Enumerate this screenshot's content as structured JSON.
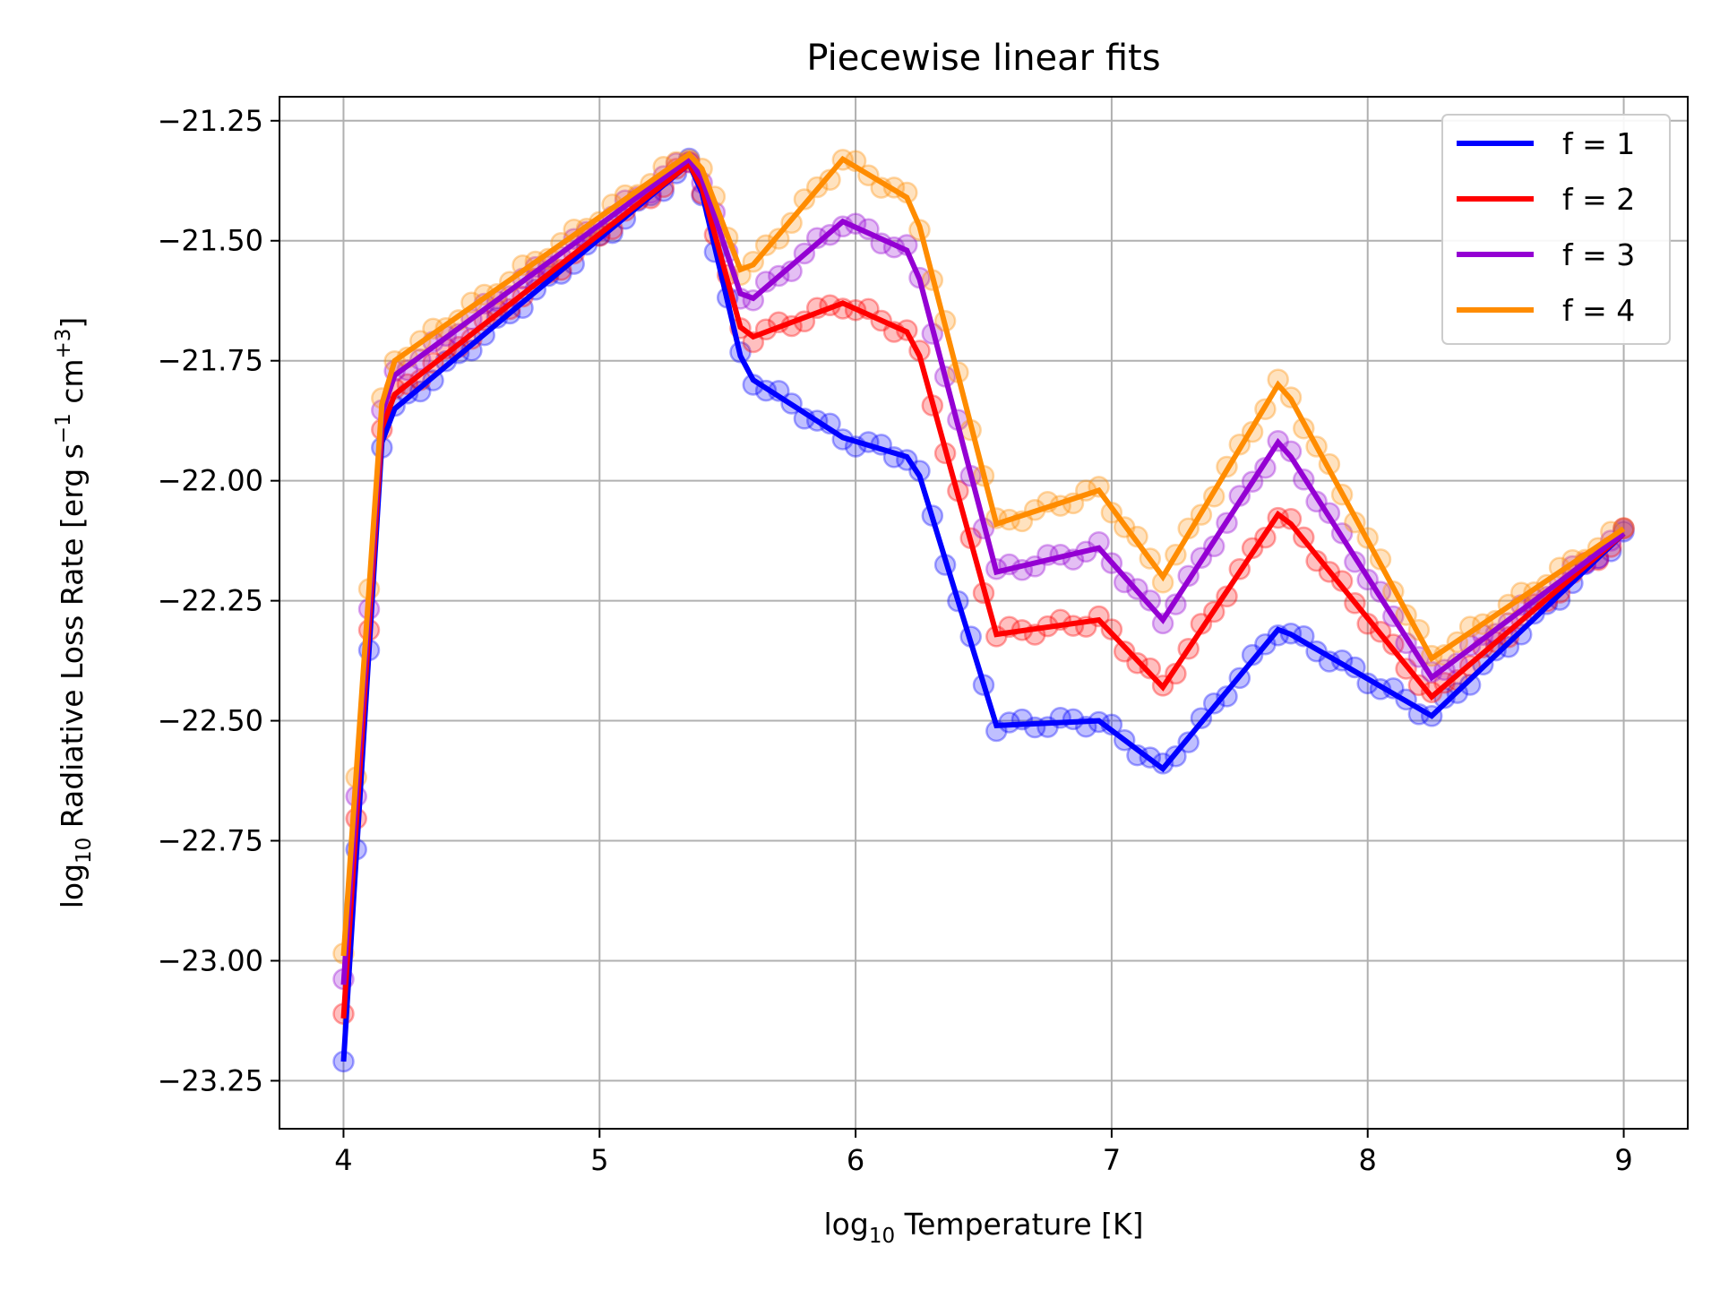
{
  "chart_data": {
    "type": "line",
    "title": "Piecewise linear fits",
    "xlabel": {
      "prefix": "log",
      "sub": "10",
      "rest": " Temperature [K]"
    },
    "ylabel": {
      "prefix": "log",
      "sub": "10",
      "mid": " Radiative Loss Rate [erg s",
      "sup1": "−1",
      "mid2": " cm",
      "sup2": "+3",
      "end": "]"
    },
    "xlim": [
      3.75,
      9.25
    ],
    "ylim": [
      -23.35,
      -21.2
    ],
    "grid": true,
    "legend_position": "top-right",
    "x_ticks": [
      4,
      5,
      6,
      7,
      8,
      9
    ],
    "x_tick_labels": [
      "4",
      "5",
      "6",
      "7",
      "8",
      "9"
    ],
    "y_ticks": [
      -21.25,
      -21.5,
      -21.75,
      -22.0,
      -22.25,
      -22.5,
      -22.75,
      -23.0,
      -23.25
    ],
    "y_tick_labels": [
      "−21.25",
      "−21.50",
      "−21.75",
      "−22.00",
      "−22.25",
      "−22.50",
      "−22.75",
      "−23.00",
      "−23.25"
    ],
    "series": [
      {
        "name": "f = 1",
        "color": "#0000ff",
        "x": [
          4.0,
          4.15,
          4.2,
          5.35,
          5.4,
          5.55,
          5.6,
          5.95,
          6.2,
          6.25,
          6.55,
          6.95,
          7.2,
          7.65,
          7.7,
          8.25,
          9.0
        ],
        "y": [
          -23.21,
          -21.92,
          -21.85,
          -21.34,
          -21.4,
          -21.74,
          -21.79,
          -21.91,
          -21.95,
          -21.99,
          -22.51,
          -22.5,
          -22.6,
          -22.31,
          -22.32,
          -22.49,
          -22.11
        ]
      },
      {
        "name": "f = 2",
        "color": "#ff0000",
        "x": [
          4.0,
          4.15,
          4.2,
          5.35,
          5.4,
          5.55,
          5.6,
          5.95,
          6.2,
          6.25,
          6.55,
          6.95,
          7.2,
          7.65,
          7.7,
          8.25,
          9.0
        ],
        "y": [
          -23.12,
          -21.89,
          -21.82,
          -21.34,
          -21.39,
          -21.68,
          -21.7,
          -21.63,
          -21.69,
          -21.74,
          -22.32,
          -22.29,
          -22.43,
          -22.07,
          -22.09,
          -22.45,
          -22.11
        ]
      },
      {
        "name": "f = 3",
        "color": "#9400d3",
        "x": [
          4.0,
          4.15,
          4.2,
          5.35,
          5.4,
          5.55,
          5.6,
          5.95,
          6.2,
          6.25,
          6.55,
          6.95,
          7.2,
          7.65,
          7.7,
          8.25,
          9.0
        ],
        "y": [
          -23.05,
          -21.86,
          -21.78,
          -21.33,
          -21.37,
          -21.61,
          -21.62,
          -21.46,
          -21.52,
          -21.58,
          -22.19,
          -22.14,
          -22.29,
          -21.92,
          -21.95,
          -22.41,
          -22.11
        ]
      },
      {
        "name": "f = 4",
        "color": "#ff8c00",
        "x": [
          4.0,
          4.15,
          4.2,
          5.35,
          5.4,
          5.55,
          5.6,
          5.95,
          6.2,
          6.25,
          6.55,
          6.95,
          7.2,
          7.65,
          7.7,
          8.25,
          9.0
        ],
        "y": [
          -22.99,
          -21.84,
          -21.75,
          -21.32,
          -21.35,
          -21.56,
          -21.55,
          -21.33,
          -21.41,
          -21.47,
          -22.09,
          -22.02,
          -22.2,
          -21.8,
          -21.83,
          -22.37,
          -22.1
        ]
      }
    ]
  }
}
